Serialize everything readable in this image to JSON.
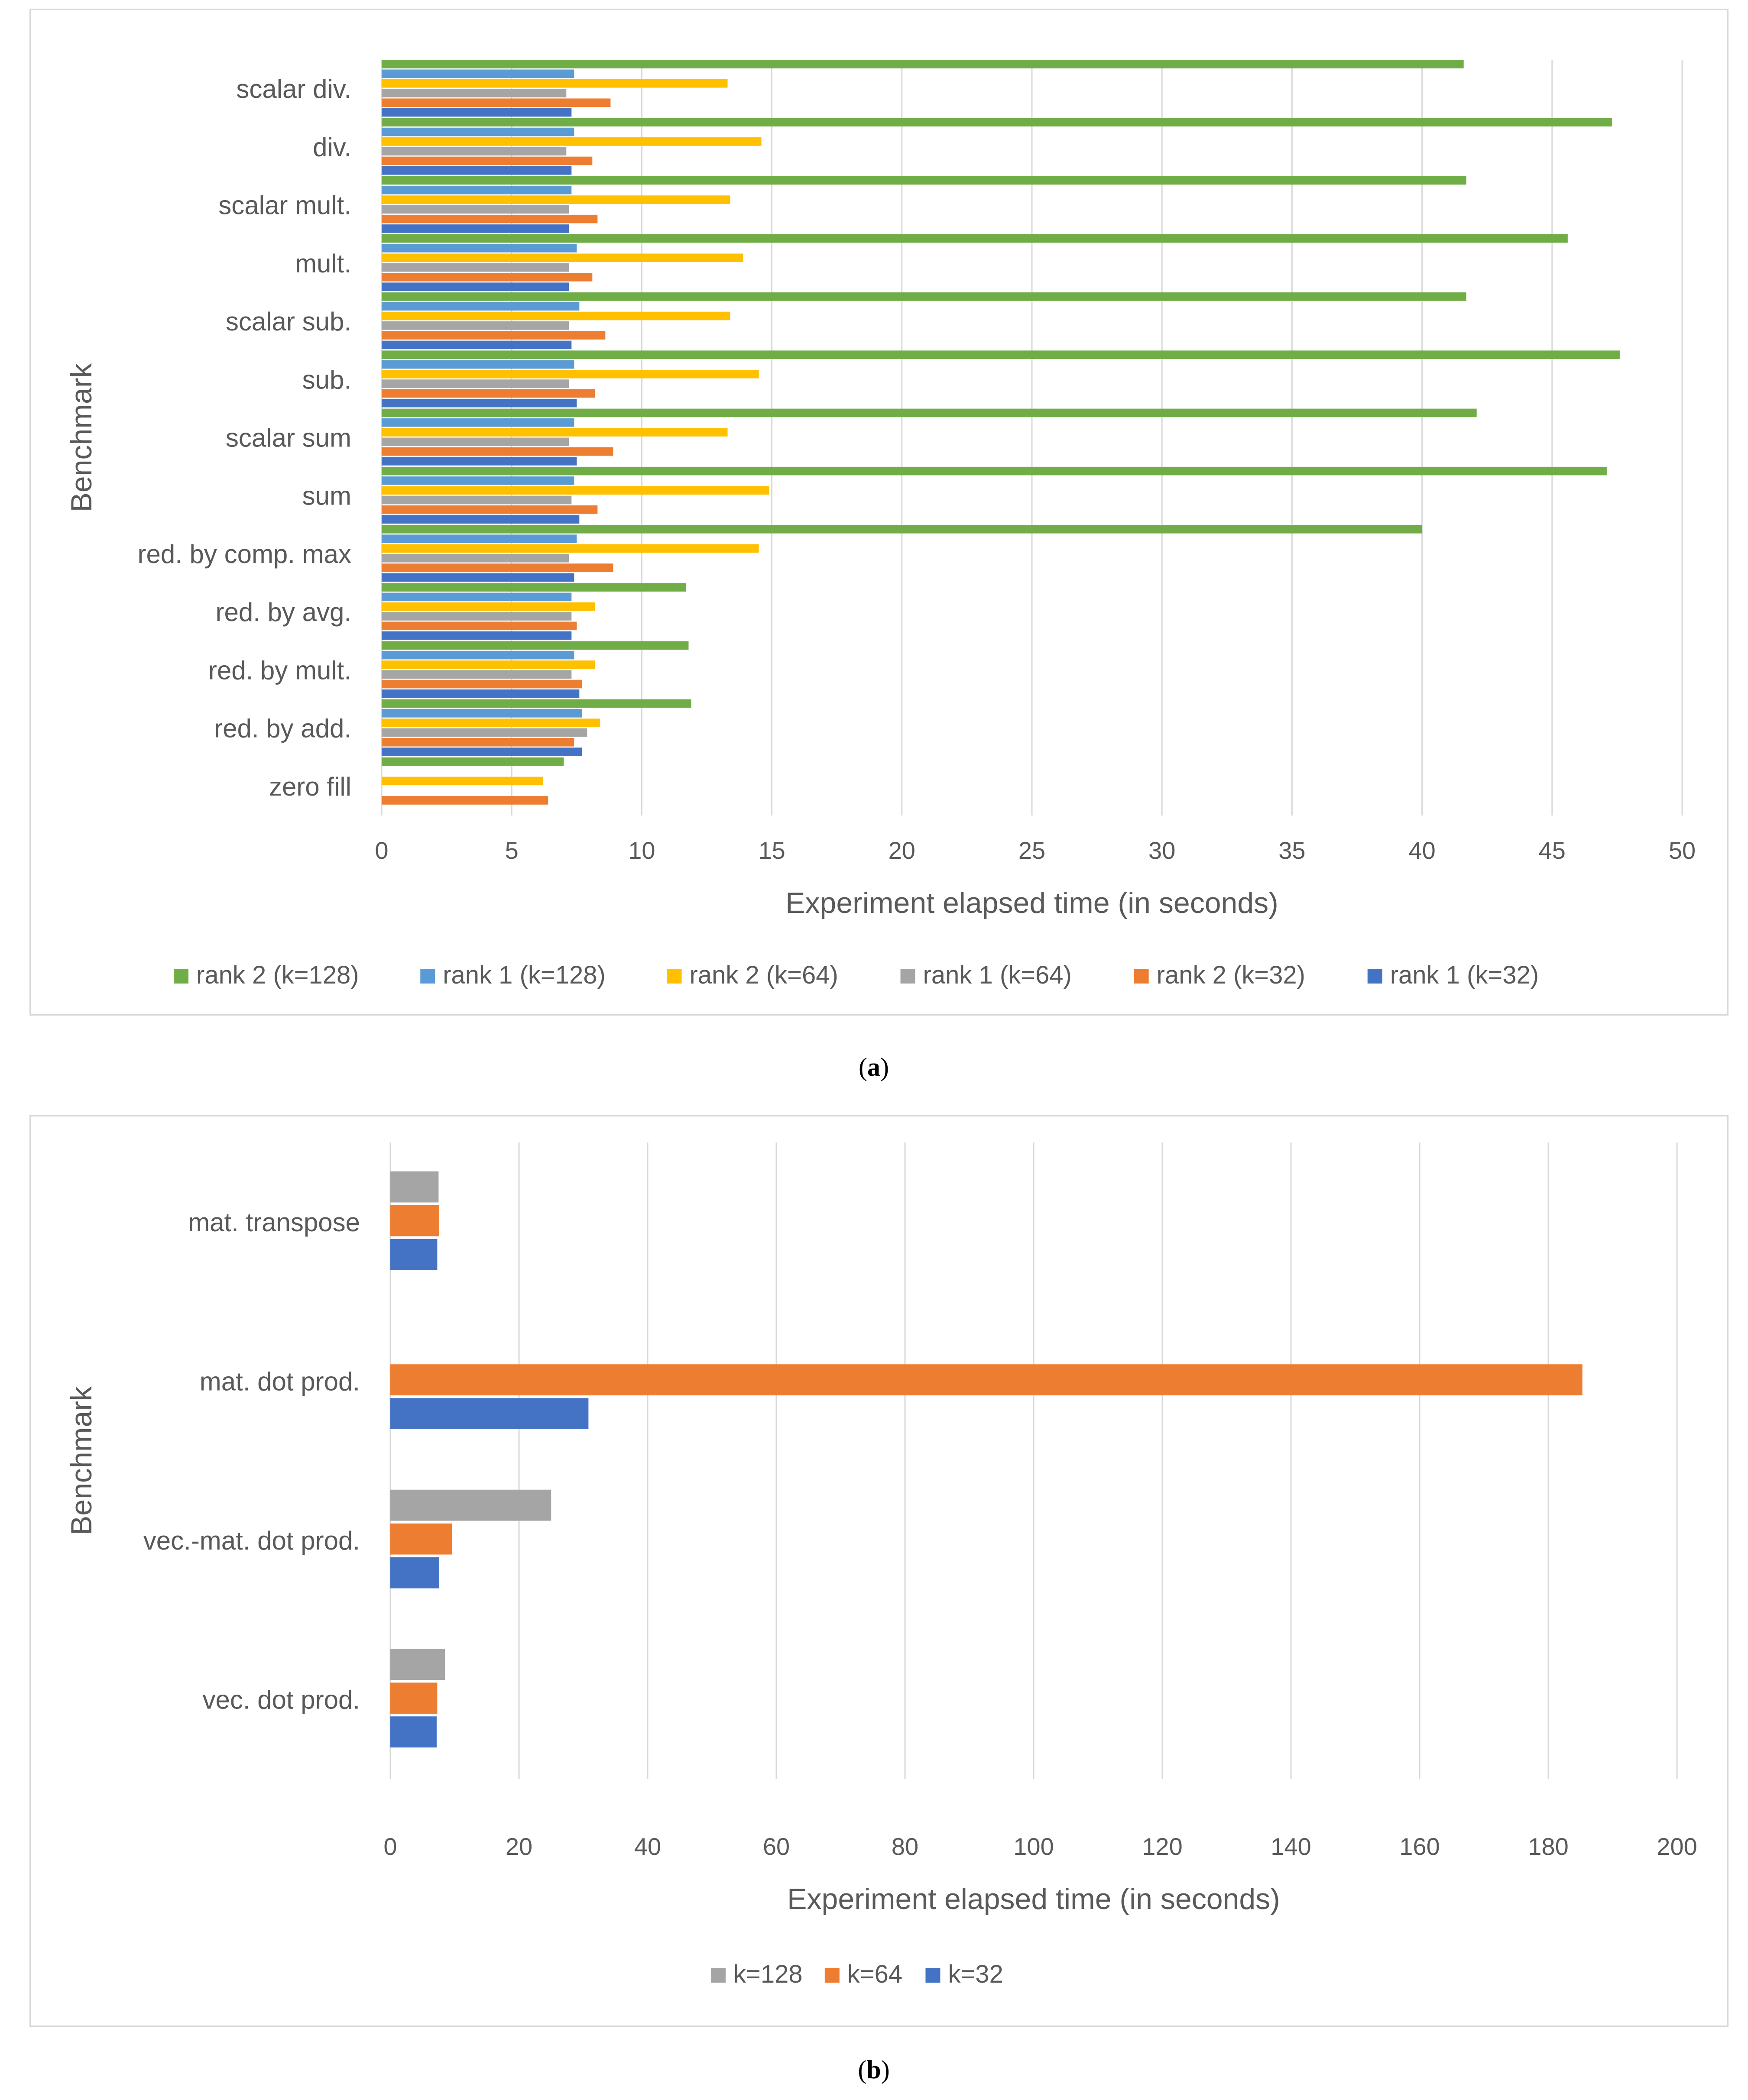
{
  "chart_data": [
    {
      "type": "bar",
      "orientation": "horizontal",
      "caption": "a",
      "title": "",
      "xlabel": "Experiment elapsed time (in seconds)",
      "ylabel": "Benchmark",
      "xlim": [
        0,
        50
      ],
      "xticks": [
        0,
        5,
        10,
        15,
        20,
        25,
        30,
        35,
        40,
        45,
        50
      ],
      "grid": true,
      "legend_position": "bottom",
      "categories": [
        "scalar div.",
        "div.",
        "scalar mult.",
        "mult.",
        "scalar sub.",
        "sub.",
        "scalar sum",
        "sum",
        "red. by comp. max",
        "red. by avg.",
        "red. by mult.",
        "red. by add.",
        "zero fill"
      ],
      "series": [
        {
          "name": "rank 2 (k=128)",
          "color": "#70ad47",
          "values": [
            41.6,
            47.3,
            41.7,
            45.6,
            41.7,
            47.6,
            42.1,
            47.1,
            40.0,
            11.7,
            11.8,
            11.9,
            7.0
          ]
        },
        {
          "name": "rank 1 (k=128)",
          "color": "#5b9bd5",
          "values": [
            7.4,
            7.4,
            7.3,
            7.5,
            7.6,
            7.4,
            7.4,
            7.4,
            7.5,
            7.3,
            7.4,
            7.7,
            null
          ]
        },
        {
          "name": "rank 2 (k=64)",
          "color": "#ffc000",
          "values": [
            13.3,
            14.6,
            13.4,
            13.9,
            13.4,
            14.5,
            13.3,
            14.9,
            14.5,
            8.2,
            8.2,
            8.4,
            6.2
          ]
        },
        {
          "name": "rank 1 (k=64)",
          "color": "#a5a5a5",
          "values": [
            7.1,
            7.1,
            7.2,
            7.2,
            7.2,
            7.2,
            7.2,
            7.3,
            7.2,
            7.3,
            7.3,
            7.9,
            null
          ]
        },
        {
          "name": "rank 2 (k=32)",
          "color": "#ed7d31",
          "values": [
            8.8,
            8.1,
            8.3,
            8.1,
            8.6,
            8.2,
            8.9,
            8.3,
            8.9,
            7.5,
            7.7,
            7.4,
            6.4
          ]
        },
        {
          "name": "rank 1 (k=32)",
          "color": "#4472c4",
          "values": [
            7.3,
            7.3,
            7.2,
            7.2,
            7.3,
            7.5,
            7.5,
            7.6,
            7.4,
            7.3,
            7.6,
            7.7,
            null
          ]
        }
      ]
    },
    {
      "type": "bar",
      "orientation": "horizontal",
      "caption": "b",
      "title": "",
      "xlabel": "Experiment elapsed time (in seconds)",
      "ylabel": "Benchmark",
      "xlim": [
        0,
        200
      ],
      "xticks": [
        0,
        20,
        40,
        60,
        80,
        100,
        120,
        140,
        160,
        180,
        200
      ],
      "grid": true,
      "legend_position": "bottom",
      "categories": [
        "mat. transpose",
        "mat. dot prod.",
        "vec.-mat. dot prod.",
        "vec. dot prod."
      ],
      "series": [
        {
          "name": "k=128",
          "color": "#a5a5a5",
          "values": [
            7.5,
            null,
            25.0,
            8.5
          ]
        },
        {
          "name": "k=64",
          "color": "#ed7d31",
          "values": [
            7.6,
            185.3,
            9.6,
            7.3
          ]
        },
        {
          "name": "k=32",
          "color": "#4472c4",
          "values": [
            7.3,
            30.8,
            7.6,
            7.2
          ]
        }
      ]
    }
  ]
}
